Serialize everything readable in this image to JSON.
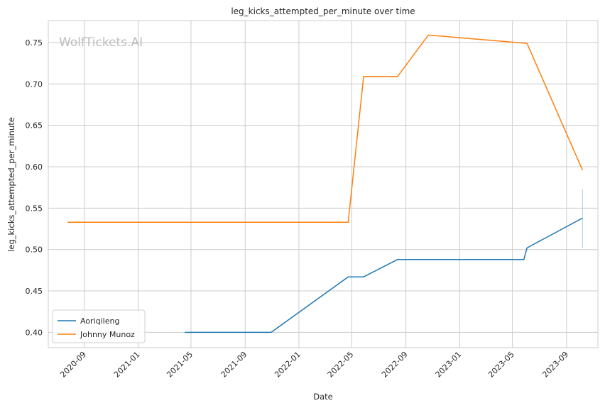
{
  "chart_data": {
    "type": "line",
    "title": "leg_kicks_attempted_per_minute over time",
    "xlabel": "Date",
    "ylabel": "leg_kicks_attempted_per_minute",
    "watermark": "WolfTickets.AI",
    "xlim": [
      "2020-06-11",
      "2023-11-11"
    ],
    "ylim": [
      0.3815,
      0.7765
    ],
    "x_ticks": [
      "2020-09",
      "2021-01",
      "2021-05",
      "2021-09",
      "2022-01",
      "2022-05",
      "2022-09",
      "2023-01",
      "2023-05",
      "2023-09"
    ],
    "y_ticks": [
      0.4,
      0.45,
      0.5,
      0.55,
      0.6,
      0.65,
      0.7,
      0.75
    ],
    "y_tick_labels": [
      "0.40",
      "0.45",
      "0.50",
      "0.55",
      "0.60",
      "0.65",
      "0.70",
      "0.75"
    ],
    "grid": true,
    "legend_position": "lower-left",
    "series": [
      {
        "name": "Aoriqileng",
        "color": "#1f77b4",
        "x": [
          "2021-04-17",
          "2021-10-30",
          "2022-04-23",
          "2022-05-28",
          "2022-08-13",
          "2023-05-27",
          "2023-06-03",
          "2023-10-07"
        ],
        "values": [
          0.4,
          0.4,
          0.467,
          0.467,
          0.488,
          0.488,
          0.502,
          0.538
        ]
      },
      {
        "name": "Johnny Munoz",
        "color": "#ff7f0e",
        "x": [
          "2020-07-25",
          "2022-04-23",
          "2022-05-28",
          "2022-08-13",
          "2022-10-22",
          "2023-06-03",
          "2023-10-07"
        ],
        "values": [
          0.533,
          0.533,
          0.709,
          0.709,
          0.759,
          0.749,
          0.596
        ]
      }
    ],
    "error_bar": {
      "x": "2023-10-07",
      "low": 0.502,
      "high": 0.573,
      "color": "#a6cbe3"
    }
  }
}
